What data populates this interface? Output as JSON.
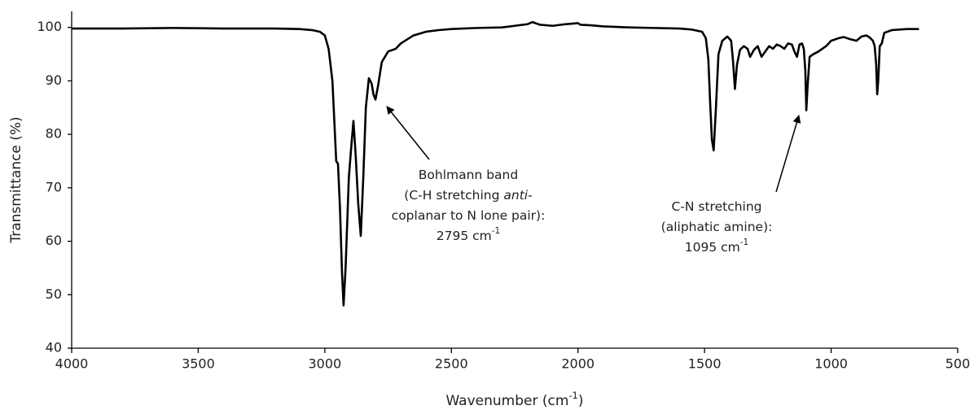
{
  "chart_data": {
    "type": "line",
    "ylabel": "Transmittance (%)",
    "xlabel": [
      {
        "text": "Wavenumber (cm"
      },
      {
        "text": "-1",
        "style": "sup"
      },
      {
        "text": ")"
      }
    ],
    "xlim": [
      4000,
      500
    ],
    "ylim": [
      40,
      103
    ],
    "xticks": [
      4000,
      3500,
      3000,
      2500,
      2000,
      1500,
      1000,
      500
    ],
    "yticks": [
      40,
      50,
      60,
      70,
      80,
      90,
      100
    ],
    "grid": false,
    "color": "#000000",
    "x": [
      4000,
      3800,
      3600,
      3400,
      3200,
      3100,
      3050,
      3020,
      3000,
      2985,
      2970,
      2962,
      2955,
      2948,
      2940,
      2932,
      2926,
      2918,
      2905,
      2895,
      2887,
      2878,
      2868,
      2858,
      2848,
      2838,
      2826,
      2815,
      2808,
      2800,
      2790,
      2775,
      2750,
      2720,
      2700,
      2650,
      2600,
      2550,
      2500,
      2400,
      2300,
      2250,
      2200,
      2180,
      2150,
      2100,
      2050,
      2000,
      1990,
      1950,
      1900,
      1800,
      1700,
      1600,
      1550,
      1510,
      1495,
      1485,
      1478,
      1471,
      1464,
      1455,
      1445,
      1430,
      1410,
      1395,
      1388,
      1380,
      1372,
      1360,
      1345,
      1330,
      1320,
      1305,
      1290,
      1275,
      1260,
      1245,
      1230,
      1215,
      1200,
      1185,
      1170,
      1155,
      1145,
      1135,
      1125,
      1115,
      1108,
      1102,
      1098,
      1093,
      1085,
      1070,
      1050,
      1020,
      1000,
      970,
      950,
      925,
      900,
      880,
      860,
      845,
      835,
      828,
      822,
      818,
      814,
      808,
      800,
      790,
      760,
      700,
      653
    ],
    "values": [
      99.8,
      99.8,
      99.9,
      99.8,
      99.8,
      99.7,
      99.5,
      99.2,
      98.5,
      96,
      90,
      82,
      75,
      74.5,
      66,
      54,
      48,
      55,
      72,
      78,
      82.5,
      76,
      67,
      61,
      72,
      85,
      90.5,
      89.5,
      87.5,
      86.5,
      89,
      93.5,
      95.5,
      96,
      97,
      98.5,
      99.2,
      99.5,
      99.7,
      99.9,
      100,
      100.3,
      100.6,
      101,
      100.5,
      100.3,
      100.6,
      100.8,
      100.5,
      100.4,
      100.2,
      100,
      99.9,
      99.8,
      99.6,
      99.2,
      98,
      94,
      86,
      79,
      77,
      85,
      95,
      97.5,
      98.3,
      97.5,
      94,
      88.5,
      93,
      95.8,
      96.5,
      96,
      94.5,
      95.8,
      96.5,
      94.5,
      95.5,
      96.5,
      96,
      96.8,
      96.5,
      96,
      97,
      96.8,
      95.5,
      94.5,
      96.8,
      97,
      96,
      92,
      84.5,
      89,
      94.5,
      95,
      95.5,
      96.5,
      97.5,
      98,
      98.2,
      97.8,
      97.5,
      98.3,
      98.5,
      98,
      97.5,
      96.5,
      93,
      87.5,
      90,
      96.5,
      97,
      99,
      99.5,
      99.7,
      99.7
    ],
    "annotations": [
      {
        "lines": [
          [
            {
              "text": "Bohlmann band"
            }
          ],
          [
            {
              "text": "(C-H stretching "
            },
            {
              "text": "anti",
              "style": "italic"
            },
            {
              "text": "-"
            }
          ],
          [
            {
              "text": "coplanar to N lone pair):"
            }
          ],
          [
            {
              "text": "2795 cm"
            },
            {
              "text": "-1",
              "style": "sup"
            }
          ]
        ]
      },
      {
        "lines": [
          [
            {
              "text": "C-N stretching"
            }
          ],
          [
            {
              "text": "(aliphatic amine):"
            }
          ],
          [
            {
              "text": "1095 cm"
            },
            {
              "text": "-1",
              "style": "sup"
            }
          ]
        ]
      }
    ]
  }
}
